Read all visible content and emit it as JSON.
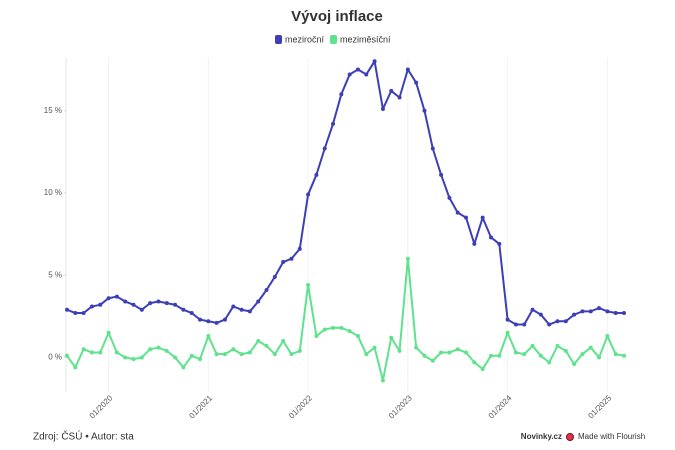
{
  "chart_data": {
    "type": "line",
    "title": "Vývoj inflace",
    "source": "Zdroj: ČSÚ • Autor: sta",
    "brand": "Novinky.cz",
    "credit": "Made with Flourish",
    "legend_position": "top",
    "categories": [
      null,
      null,
      null,
      null,
      null,
      "01/2020",
      null,
      null,
      null,
      null,
      null,
      null,
      null,
      null,
      null,
      null,
      null,
      "01/2021",
      null,
      null,
      null,
      null,
      null,
      null,
      null,
      null,
      null,
      null,
      null,
      "01/2022",
      null,
      null,
      null,
      null,
      null,
      null,
      null,
      null,
      null,
      null,
      null,
      "01/2023",
      null,
      null,
      null,
      null,
      null,
      null,
      null,
      null,
      null,
      null,
      null,
      "01/2024",
      null,
      null,
      null,
      null,
      null,
      null,
      null,
      null,
      null,
      null,
      null,
      "01/2025",
      null,
      null
    ],
    "series": [
      {
        "name": "meziroční",
        "color": "#3c3fb5",
        "values": [
          2.9,
          2.7,
          2.7,
          3.1,
          3.2,
          3.6,
          3.7,
          3.4,
          3.2,
          2.9,
          3.3,
          3.4,
          3.3,
          3.2,
          2.9,
          2.7,
          2.3,
          2.2,
          2.1,
          2.3,
          3.1,
          2.9,
          2.8,
          3.4,
          4.1,
          4.9,
          5.8,
          6.0,
          6.6,
          9.9,
          11.1,
          12.7,
          14.2,
          16.0,
          17.2,
          17.5,
          17.2,
          18.0,
          15.1,
          16.2,
          15.8,
          17.5,
          16.7,
          15.0,
          12.7,
          11.1,
          9.7,
          8.8,
          8.5,
          6.9,
          8.5,
          7.3,
          6.9,
          2.3,
          2.0,
          2.0,
          2.9,
          2.6,
          2.0,
          2.2,
          2.2,
          2.6,
          2.8,
          2.8,
          3.0,
          2.8,
          2.7,
          2.7
        ]
      },
      {
        "name": "meziměsíční",
        "color": "#5ee38c",
        "values": [
          0.1,
          -0.6,
          0.5,
          0.3,
          0.3,
          1.5,
          0.3,
          0.0,
          -0.1,
          0.0,
          0.5,
          0.6,
          0.4,
          0.0,
          -0.6,
          0.1,
          -0.1,
          1.3,
          0.2,
          0.2,
          0.5,
          0.2,
          0.3,
          1.0,
          0.7,
          0.2,
          1.0,
          0.2,
          0.4,
          4.4,
          1.3,
          1.7,
          1.8,
          1.8,
          1.6,
          1.3,
          0.2,
          0.6,
          -1.4,
          1.2,
          0.4,
          6.0,
          0.6,
          0.1,
          -0.2,
          0.3,
          0.3,
          0.5,
          0.3,
          -0.3,
          -0.7,
          0.1,
          0.1,
          1.5,
          0.3,
          0.2,
          0.7,
          0.1,
          -0.3,
          0.7,
          0.4,
          -0.4,
          0.2,
          0.6,
          0.0,
          1.3,
          0.2,
          0.1
        ]
      }
    ],
    "ylim": [
      -2.1,
      18.2
    ],
    "yticks": [
      {
        "value": 0,
        "label": "0 %"
      },
      {
        "value": 5,
        "label": "5 %"
      },
      {
        "value": 10,
        "label": "10 %"
      },
      {
        "value": 15,
        "label": "15 %"
      }
    ]
  }
}
